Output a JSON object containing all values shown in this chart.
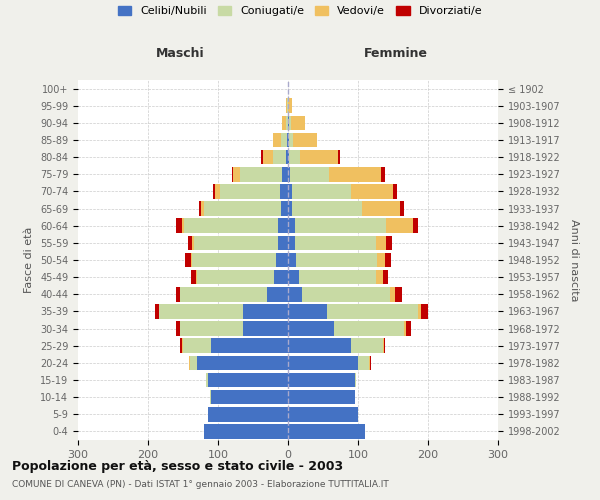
{
  "age_groups": [
    "0-4",
    "5-9",
    "10-14",
    "15-19",
    "20-24",
    "25-29",
    "30-34",
    "35-39",
    "40-44",
    "45-49",
    "50-54",
    "55-59",
    "60-64",
    "65-69",
    "70-74",
    "75-79",
    "80-84",
    "85-89",
    "90-94",
    "95-99",
    "100+"
  ],
  "birth_years": [
    "1998-2002",
    "1993-1997",
    "1988-1992",
    "1983-1987",
    "1978-1982",
    "1973-1977",
    "1968-1972",
    "1963-1967",
    "1958-1962",
    "1953-1957",
    "1948-1952",
    "1943-1947",
    "1938-1942",
    "1933-1937",
    "1928-1932",
    "1923-1927",
    "1918-1922",
    "1913-1917",
    "1908-1912",
    "1903-1907",
    "≤ 1902"
  ],
  "maschi": {
    "celibi": [
      120,
      115,
      110,
      115,
      130,
      110,
      65,
      65,
      30,
      20,
      17,
      15,
      14,
      10,
      12,
      8,
      3,
      2,
      0,
      0,
      0
    ],
    "coniugati": [
      0,
      0,
      1,
      2,
      10,
      40,
      90,
      120,
      125,
      110,
      120,
      120,
      135,
      110,
      85,
      60,
      18,
      8,
      3,
      1,
      0
    ],
    "vedovi": [
      0,
      0,
      0,
      0,
      2,
      2,
      0,
      0,
      0,
      1,
      2,
      2,
      3,
      5,
      8,
      10,
      15,
      12,
      5,
      2,
      0
    ],
    "divorziati": [
      0,
      0,
      0,
      0,
      0,
      2,
      5,
      5,
      5,
      8,
      8,
      6,
      8,
      2,
      2,
      2,
      2,
      0,
      0,
      0,
      0
    ]
  },
  "femmine": {
    "nubili": [
      110,
      100,
      95,
      95,
      100,
      90,
      65,
      55,
      20,
      15,
      12,
      10,
      10,
      5,
      5,
      3,
      2,
      2,
      1,
      0,
      0
    ],
    "coniugate": [
      0,
      0,
      1,
      2,
      15,
      45,
      100,
      130,
      125,
      110,
      115,
      115,
      130,
      100,
      85,
      55,
      15,
      5,
      3,
      0,
      0
    ],
    "vedove": [
      0,
      0,
      0,
      0,
      2,
      2,
      3,
      5,
      8,
      10,
      12,
      15,
      38,
      55,
      60,
      75,
      55,
      35,
      20,
      5,
      0
    ],
    "divorziate": [
      0,
      0,
      0,
      0,
      2,
      2,
      8,
      10,
      10,
      8,
      8,
      8,
      8,
      5,
      5,
      5,
      2,
      0,
      0,
      0,
      0
    ]
  },
  "colors": {
    "celibi": "#4472c4",
    "coniugati": "#c8daa4",
    "vedovi": "#f0c060",
    "divorziati": "#c00000"
  },
  "title": "Popolazione per età, sesso e stato civile - 2003",
  "subtitle": "COMUNE DI CANEVA (PN) - Dati ISTAT 1° gennaio 2003 - Elaborazione TUTTITALIA.IT",
  "xlabel_left": "Maschi",
  "xlabel_right": "Femmine",
  "ylabel_left": "Fasce di età",
  "ylabel_right": "Anni di nascita",
  "xlim": 300,
  "legend_labels": [
    "Celibi/Nubili",
    "Coniugati/e",
    "Vedovi/e",
    "Divorziati/e"
  ],
  "background_color": "#f0f0eb",
  "plot_bg": "#ffffff",
  "grid_color": "#cccccc"
}
